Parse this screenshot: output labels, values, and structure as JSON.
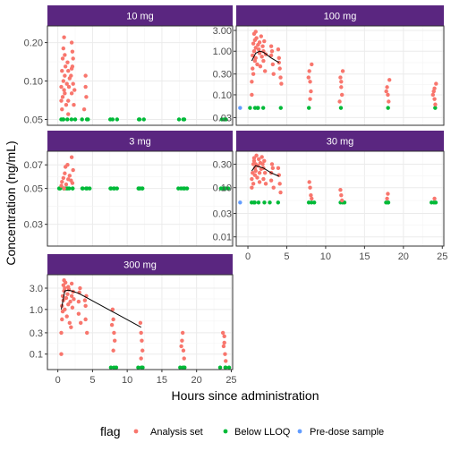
{
  "chart_data": {
    "type": "scatter",
    "xlabel": "Hours since administration",
    "ylabel": "Concentration (ng/mL)",
    "x_ticks": [
      0,
      5,
      10,
      15,
      20,
      25
    ],
    "x_range": [
      -1.5,
      25.2
    ],
    "y_scale": "log",
    "legend": {
      "title": "flag",
      "position": "bottom",
      "entries": [
        {
          "label": "Analysis set",
          "color": "#F8766D"
        },
        {
          "label": "Below LLOQ",
          "color": "#00BA38"
        },
        {
          "label": "Pre-dose sample",
          "color": "#619CFF"
        }
      ]
    },
    "strip_color": "#5A2680",
    "nominal_times": [
      0.5,
      1,
      1.5,
      2,
      3,
      4,
      8,
      12,
      18,
      24
    ],
    "panels": [
      {
        "label": "10 mg",
        "y_ticks": [
          "0.05",
          "0.10",
          "0.20"
        ],
        "y_tick_values": [
          0.05,
          0.1,
          0.2
        ],
        "y_range": [
          0.045,
          0.27
        ],
        "lloq": 0.05,
        "analysis_points": [
          [
            0.5,
            0.07
          ],
          [
            0.5,
            0.09
          ],
          [
            0.6,
            0.12
          ],
          [
            0.7,
            0.15
          ],
          [
            0.8,
            0.18
          ],
          [
            0.9,
            0.22
          ],
          [
            0.6,
            0.06
          ],
          [
            0.7,
            0.075
          ],
          [
            0.9,
            0.085
          ],
          [
            0.8,
            0.1
          ],
          [
            1.0,
            0.11
          ],
          [
            1.0,
            0.08
          ],
          [
            1.1,
            0.13
          ],
          [
            1.0,
            0.16
          ],
          [
            1.2,
            0.065
          ],
          [
            1.3,
            0.095
          ],
          [
            1.4,
            0.14
          ],
          [
            1.5,
            0.12
          ],
          [
            1.5,
            0.07
          ],
          [
            1.6,
            0.09
          ],
          [
            1.7,
            0.105
          ],
          [
            1.5,
            0.055
          ],
          [
            2.0,
            0.08
          ],
          [
            2.0,
            0.2
          ],
          [
            2.1,
            0.17
          ],
          [
            2.2,
            0.15
          ],
          [
            1.9,
            0.11
          ],
          [
            2.0,
            0.125
          ],
          [
            2.2,
            0.095
          ],
          [
            2.3,
            0.065
          ],
          [
            2.1,
            0.13
          ],
          [
            2.4,
            0.085
          ],
          [
            3.8,
            0.06
          ],
          [
            4.0,
            0.09
          ],
          [
            4.1,
            0.075
          ],
          [
            4.0,
            0.11
          ]
        ],
        "blq_times": [
          0.5,
          0.7,
          1.0,
          1.5,
          2.0,
          2.5,
          3.7,
          4.0,
          4.3,
          7.6,
          8.0,
          8.4,
          11.6,
          12.0,
          12.4,
          17.6,
          18.0,
          18.4,
          23.6,
          24.0,
          24.4
        ],
        "predose": [],
        "mean_line": []
      },
      {
        "label": "100 mg",
        "y_ticks": [
          "0.03",
          "0.10",
          "0.30",
          "1.00",
          "3.00"
        ],
        "y_tick_values": [
          0.03,
          0.1,
          0.3,
          1,
          3
        ],
        "y_range": [
          0.02,
          3.8
        ],
        "lloq": 0.05,
        "analysis_points": [
          [
            0.5,
            0.1
          ],
          [
            0.5,
            0.2
          ],
          [
            0.6,
            0.4
          ],
          [
            0.6,
            0.8
          ],
          [
            0.7,
            1.5
          ],
          [
            0.8,
            2.5
          ],
          [
            0.9,
            0.6
          ],
          [
            0.7,
            0.3
          ],
          [
            0.8,
            1.0
          ],
          [
            0.9,
            1.8
          ],
          [
            1.0,
            1.2
          ],
          [
            1.0,
            0.7
          ],
          [
            1.1,
            2.0
          ],
          [
            1.2,
            0.5
          ],
          [
            1.0,
            2.8
          ],
          [
            1.3,
            1.4
          ],
          [
            1.5,
            0.9
          ],
          [
            1.5,
            1.6
          ],
          [
            1.6,
            0.45
          ],
          [
            1.7,
            2.2
          ],
          [
            1.4,
            1.1
          ],
          [
            1.8,
            0.75
          ],
          [
            2.0,
            1.0
          ],
          [
            2.0,
            0.6
          ],
          [
            2.1,
            1.7
          ],
          [
            2.2,
            0.35
          ],
          [
            1.9,
            1.3
          ],
          [
            2.3,
            0.85
          ],
          [
            3.0,
            0.8
          ],
          [
            3.2,
            0.5
          ],
          [
            3.0,
            1.3
          ],
          [
            3.3,
            0.3
          ],
          [
            3.1,
            1.0
          ],
          [
            4.0,
            0.7
          ],
          [
            4.1,
            0.4
          ],
          [
            4.2,
            0.25
          ],
          [
            3.9,
            1.1
          ],
          [
            4.0,
            0.55
          ],
          [
            4.3,
            0.18
          ],
          [
            7.9,
            0.35
          ],
          [
            8.0,
            0.2
          ],
          [
            8.1,
            0.12
          ],
          [
            8.2,
            0.5
          ],
          [
            7.8,
            0.25
          ],
          [
            8.0,
            0.08
          ],
          [
            11.9,
            0.25
          ],
          [
            12.0,
            0.15
          ],
          [
            12.1,
            0.1
          ],
          [
            12.2,
            0.35
          ],
          [
            11.8,
            0.07
          ],
          [
            12.0,
            0.2
          ],
          [
            17.9,
            0.15
          ],
          [
            18.0,
            0.1
          ],
          [
            18.1,
            0.07
          ],
          [
            18.2,
            0.22
          ],
          [
            17.8,
            0.12
          ],
          [
            23.9,
            0.12
          ],
          [
            24.0,
            0.08
          ],
          [
            24.1,
            0.06
          ],
          [
            24.2,
            0.18
          ],
          [
            23.8,
            0.1
          ],
          [
            24.0,
            0.14
          ]
        ],
        "blq_times": [
          0.5,
          0.7,
          1.0,
          1.5,
          2.0,
          4.0,
          8.0,
          12.0,
          18.0,
          24.0
        ],
        "predose": [
          [
            -1.0,
            0.05
          ]
        ],
        "mean_line": [
          [
            0.5,
            0.6
          ],
          [
            1.0,
            0.9
          ],
          [
            1.5,
            1.0
          ],
          [
            2.0,
            0.95
          ],
          [
            3.0,
            0.7
          ],
          [
            4.0,
            0.55
          ]
        ]
      },
      {
        "label": "3 mg",
        "y_ticks": [
          "0.03",
          "0.05",
          "0.07"
        ],
        "y_tick_values": [
          0.03,
          0.05,
          0.07
        ],
        "y_range": [
          0.022,
          0.085
        ],
        "lloq": 0.05,
        "analysis_points": [
          [
            0.5,
            0.052
          ],
          [
            0.6,
            0.055
          ],
          [
            0.8,
            0.058
          ],
          [
            1.0,
            0.062
          ],
          [
            1.1,
            0.068
          ],
          [
            1.2,
            0.053
          ],
          [
            1.5,
            0.057
          ],
          [
            1.7,
            0.06
          ],
          [
            2.0,
            0.078
          ],
          [
            2.1,
            0.054
          ],
          [
            0.9,
            0.05
          ],
          [
            2.2,
            0.065
          ],
          [
            1.4,
            0.07
          ],
          [
            1.9,
            0.056
          ]
        ],
        "blq_times": [
          0.3,
          0.5,
          0.7,
          0.9,
          1.0,
          1.2,
          1.5,
          1.8,
          2.0,
          2.2,
          3.6,
          3.8,
          4.0,
          4.2,
          4.4,
          7.6,
          7.8,
          8.0,
          8.2,
          8.4,
          11.6,
          11.8,
          12.0,
          12.2,
          12.4,
          17.6,
          17.8,
          18.0,
          18.2,
          18.4,
          23.6,
          23.8,
          24.0,
          24.2,
          24.4
        ],
        "predose": [],
        "mean_line": []
      },
      {
        "label": "30 mg",
        "y_ticks": [
          "0.01",
          "0.03",
          "0.10",
          "0.30"
        ],
        "y_tick_values": [
          0.01,
          0.03,
          0.1,
          0.3
        ],
        "y_range": [
          0.0065,
          0.55
        ],
        "lloq": 0.05,
        "analysis_points": [
          [
            0.5,
            0.1
          ],
          [
            0.5,
            0.15
          ],
          [
            0.6,
            0.2
          ],
          [
            0.7,
            0.3
          ],
          [
            0.8,
            0.4
          ],
          [
            0.9,
            0.25
          ],
          [
            0.7,
            0.12
          ],
          [
            0.8,
            0.35
          ],
          [
            0.9,
            0.18
          ],
          [
            1.0,
            0.3
          ],
          [
            1.0,
            0.22
          ],
          [
            1.1,
            0.45
          ],
          [
            1.2,
            0.16
          ],
          [
            1.3,
            0.28
          ],
          [
            1.4,
            0.38
          ],
          [
            1.5,
            0.2
          ],
          [
            1.5,
            0.13
          ],
          [
            1.6,
            0.32
          ],
          [
            1.7,
            0.24
          ],
          [
            1.8,
            0.42
          ],
          [
            2.0,
            0.25
          ],
          [
            2.0,
            0.15
          ],
          [
            2.1,
            0.35
          ],
          [
            2.2,
            0.2
          ],
          [
            1.9,
            0.3
          ],
          [
            2.3,
            0.12
          ],
          [
            3.0,
            0.2
          ],
          [
            3.1,
            0.3
          ],
          [
            3.0,
            0.14
          ],
          [
            3.2,
            0.25
          ],
          [
            3.3,
            0.1
          ],
          [
            4.0,
            0.18
          ],
          [
            4.1,
            0.12
          ],
          [
            3.9,
            0.25
          ],
          [
            4.2,
            0.08
          ],
          [
            8.0,
            0.1
          ],
          [
            8.1,
            0.07
          ],
          [
            7.9,
            0.13
          ],
          [
            8.2,
            0.06
          ],
          [
            12.0,
            0.07
          ],
          [
            12.1,
            0.055
          ],
          [
            11.9,
            0.09
          ],
          [
            17.9,
            0.06
          ],
          [
            18.0,
            0.075
          ],
          [
            24.0,
            0.06
          ]
        ],
        "blq_times": [
          0.5,
          0.8,
          1.0,
          1.5,
          2.0,
          3.0,
          4.0,
          7.7,
          8.0,
          8.3,
          11.7,
          12.0,
          12.3,
          17.7,
          18.0,
          18.3,
          23.7,
          24.0,
          24.3
        ],
        "predose": [
          [
            -1.0,
            0.05
          ]
        ],
        "mean_line": [
          [
            0.5,
            0.22
          ],
          [
            1.0,
            0.28
          ],
          [
            2.0,
            0.25
          ],
          [
            3.0,
            0.2
          ],
          [
            4.0,
            0.17
          ]
        ]
      },
      {
        "label": "300 mg",
        "y_ticks": [
          "0.1",
          "0.3",
          "1.0",
          "3.0"
        ],
        "y_tick_values": [
          0.1,
          0.3,
          1,
          3
        ],
        "y_range": [
          0.045,
          6.0
        ],
        "lloq": 0.05,
        "analysis_points": [
          [
            0.5,
            0.1
          ],
          [
            0.5,
            0.3
          ],
          [
            0.6,
            0.6
          ],
          [
            0.6,
            1.2
          ],
          [
            0.7,
            2.0
          ],
          [
            0.8,
            3.5
          ],
          [
            0.9,
            4.5
          ],
          [
            0.7,
            0.9
          ],
          [
            0.8,
            1.6
          ],
          [
            0.9,
            2.6
          ],
          [
            1.0,
            1.0
          ],
          [
            1.0,
            3.0
          ],
          [
            1.1,
            4.0
          ],
          [
            1.2,
            1.8
          ],
          [
            1.3,
            0.7
          ],
          [
            1.4,
            2.2
          ],
          [
            1.5,
            3.2
          ],
          [
            1.5,
            1.3
          ],
          [
            1.6,
            2.8
          ],
          [
            1.7,
            0.5
          ],
          [
            1.8,
            1.5
          ],
          [
            2.0,
            2.0
          ],
          [
            2.0,
            3.8
          ],
          [
            2.1,
            1.1
          ],
          [
            2.2,
            2.5
          ],
          [
            1.9,
            0.4
          ],
          [
            2.3,
            1.7
          ],
          [
            3.0,
            1.5
          ],
          [
            3.1,
            2.4
          ],
          [
            3.0,
            0.8
          ],
          [
            3.2,
            3.0
          ],
          [
            3.3,
            0.5
          ],
          [
            4.0,
            1.2
          ],
          [
            4.1,
            2.0
          ],
          [
            4.0,
            0.6
          ],
          [
            4.2,
            0.3
          ],
          [
            3.9,
            1.6
          ],
          [
            8.0,
            0.6
          ],
          [
            8.1,
            0.3
          ],
          [
            7.9,
            1.0
          ],
          [
            8.2,
            0.2
          ],
          [
            8.0,
            0.12
          ],
          [
            7.8,
            0.45
          ],
          [
            12.0,
            0.3
          ],
          [
            12.1,
            0.2
          ],
          [
            11.9,
            0.5
          ],
          [
            12.2,
            0.12
          ],
          [
            12.0,
            0.08
          ],
          [
            17.9,
            0.2
          ],
          [
            18.0,
            0.3
          ],
          [
            18.1,
            0.12
          ],
          [
            18.2,
            0.08
          ],
          [
            17.8,
            0.15
          ],
          [
            23.9,
            0.15
          ],
          [
            24.0,
            0.25
          ],
          [
            24.1,
            0.1
          ],
          [
            24.2,
            0.07
          ],
          [
            23.8,
            0.3
          ],
          [
            24.0,
            0.18
          ]
        ],
        "blq_times": [
          7.7,
          8.0,
          8.3,
          11.7,
          12.0,
          12.3,
          17.7,
          18.0,
          18.3,
          23.6,
          23.9,
          24.2,
          24.5
        ],
        "predose": [],
        "mean_line": [
          [
            0.5,
            1.0
          ],
          [
            1.0,
            2.6
          ],
          [
            1.5,
            2.7
          ],
          [
            2.0,
            2.6
          ],
          [
            3.0,
            2.3
          ],
          [
            4.0,
            1.9
          ],
          [
            12.0,
            0.4
          ]
        ]
      }
    ]
  }
}
